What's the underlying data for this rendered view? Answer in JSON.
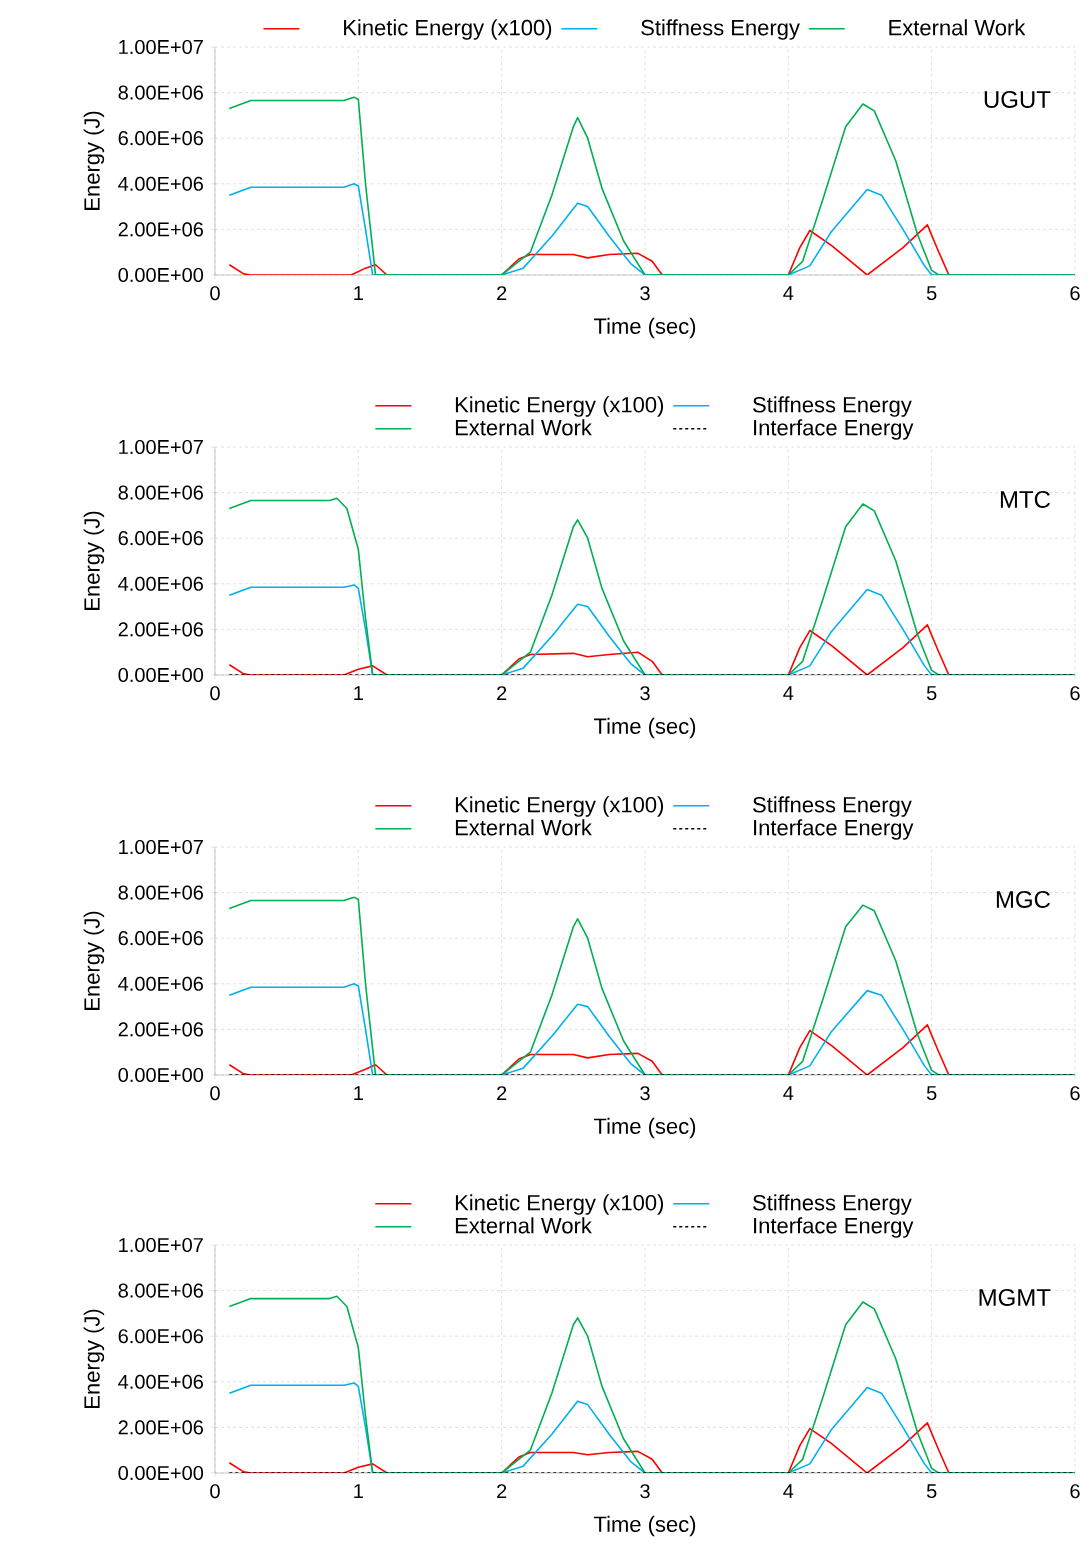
{
  "chart_data": [
    {
      "type": "line",
      "annotations": [
        "UGUT"
      ],
      "xlabel": "Time (sec)",
      "ylabel": "Energy (J)",
      "xlim": [
        0,
        6
      ],
      "xticks": [
        0,
        1,
        2,
        3,
        4,
        5,
        6
      ],
      "ylim": [
        0,
        10000000
      ],
      "yticks": [
        {
          "value": 0,
          "label": "0.00E+00"
        },
        {
          "value": 2000000,
          "label": "2.00E+06"
        },
        {
          "value": 4000000,
          "label": "4.00E+06"
        },
        {
          "value": 6000000,
          "label": "6.00E+06"
        },
        {
          "value": 8000000,
          "label": "8.00E+06"
        },
        {
          "value": 10000000,
          "label": "1.00E+07"
        }
      ],
      "grid": true,
      "legend": "top",
      "series": [
        {
          "name": "Kinetic Energy (x100)",
          "color": "#ff0000",
          "x": [
            0.1,
            0.2,
            0.25,
            0.95,
            1.05,
            1.12,
            1.2,
            2.0,
            2.12,
            2.2,
            2.5,
            2.6,
            2.75,
            2.95,
            3.05,
            3.12,
            4.0,
            4.08,
            4.15,
            4.3,
            4.55,
            4.8,
            4.97,
            5.05,
            5.12,
            6.0
          ],
          "values": [
            450000,
            50000,
            0,
            0,
            300000,
            450000,
            0,
            0,
            700000,
            900000,
            900000,
            750000,
            900000,
            950000,
            600000,
            0,
            0,
            1200000,
            1950000,
            1300000,
            0,
            1200000,
            2200000,
            1000000,
            0,
            0
          ]
        },
        {
          "name": "Stiffness Energy",
          "color": "#00b0f0",
          "x": [
            0.1,
            0.25,
            0.3,
            0.9,
            0.97,
            1.0,
            1.05,
            1.1,
            2.0,
            2.15,
            2.35,
            2.53,
            2.6,
            2.75,
            2.9,
            3.0,
            4.0,
            4.15,
            4.3,
            4.55,
            4.65,
            4.8,
            4.95,
            5.0,
            6.0
          ],
          "values": [
            3500000,
            3850000,
            3850000,
            3850000,
            4000000,
            3900000,
            2000000,
            0,
            0,
            300000,
            1700000,
            3150000,
            3000000,
            1700000,
            500000,
            0,
            0,
            400000,
            1900000,
            3750000,
            3500000,
            2000000,
            400000,
            0,
            0
          ]
        },
        {
          "name": "External Work",
          "color": "#00b050",
          "x": [
            0.1,
            0.25,
            0.3,
            0.9,
            0.97,
            1.0,
            1.05,
            1.12,
            2.0,
            2.2,
            2.35,
            2.5,
            2.53,
            2.6,
            2.7,
            2.85,
            3.0,
            4.0,
            4.1,
            4.25,
            4.4,
            4.52,
            4.6,
            4.75,
            4.9,
            5.0,
            5.05,
            6.0
          ],
          "values": [
            7300000,
            7650000,
            7650000,
            7650000,
            7800000,
            7700000,
            4000000,
            0,
            0,
            1000000,
            3500000,
            6500000,
            6900000,
            6000000,
            3800000,
            1500000,
            0,
            0,
            600000,
            3500000,
            6500000,
            7500000,
            7200000,
            5000000,
            1800000,
            200000,
            0,
            0
          ]
        }
      ]
    },
    {
      "type": "line",
      "annotations": [
        "MTC"
      ],
      "xlabel": "Time (sec)",
      "ylabel": "Energy (J)",
      "xlim": [
        0,
        6
      ],
      "xticks": [
        0,
        1,
        2,
        3,
        4,
        5,
        6
      ],
      "ylim": [
        0,
        10000000
      ],
      "yticks": [
        {
          "value": 0,
          "label": "0.00E+00"
        },
        {
          "value": 2000000,
          "label": "2.00E+06"
        },
        {
          "value": 4000000,
          "label": "4.00E+06"
        },
        {
          "value": 6000000,
          "label": "6.00E+06"
        },
        {
          "value": 8000000,
          "label": "8.00E+06"
        },
        {
          "value": 10000000,
          "label": "1.00E+07"
        }
      ],
      "grid": true,
      "legend": "top",
      "series": [
        {
          "name": "Kinetic Energy (x100)",
          "color": "#ff0000",
          "x": [
            0.1,
            0.2,
            0.25,
            0.9,
            1.0,
            1.1,
            1.2,
            2.0,
            2.12,
            2.2,
            2.5,
            2.6,
            2.75,
            2.95,
            3.05,
            3.12,
            4.0,
            4.08,
            4.15,
            4.3,
            4.55,
            4.8,
            4.97,
            5.05,
            5.12,
            6.0
          ],
          "values": [
            450000,
            50000,
            0,
            0,
            250000,
            400000,
            0,
            0,
            700000,
            900000,
            950000,
            800000,
            900000,
            1000000,
            600000,
            0,
            0,
            1200000,
            1950000,
            1300000,
            0,
            1200000,
            2200000,
            1000000,
            0,
            0
          ]
        },
        {
          "name": "Stiffness Energy",
          "color": "#00b0f0",
          "x": [
            0.1,
            0.25,
            0.3,
            0.9,
            0.97,
            1.0,
            1.05,
            1.1,
            2.0,
            2.15,
            2.35,
            2.53,
            2.6,
            2.75,
            2.9,
            3.0,
            4.0,
            4.15,
            4.3,
            4.55,
            4.65,
            4.8,
            4.95,
            5.0,
            6.0
          ],
          "values": [
            3500000,
            3850000,
            3850000,
            3850000,
            3950000,
            3800000,
            2000000,
            0,
            0,
            300000,
            1700000,
            3100000,
            3000000,
            1700000,
            500000,
            0,
            0,
            400000,
            1900000,
            3750000,
            3500000,
            2000000,
            400000,
            0,
            0
          ]
        },
        {
          "name": "External Work",
          "color": "#00b050",
          "x": [
            0.1,
            0.25,
            0.3,
            0.8,
            0.85,
            0.92,
            1.0,
            1.05,
            1.1,
            2.0,
            2.2,
            2.35,
            2.5,
            2.53,
            2.6,
            2.7,
            2.85,
            3.0,
            4.0,
            4.1,
            4.25,
            4.4,
            4.52,
            4.6,
            4.75,
            4.9,
            5.0,
            5.05,
            6.0
          ],
          "values": [
            7300000,
            7650000,
            7650000,
            7650000,
            7750000,
            7300000,
            5500000,
            2500000,
            0,
            0,
            1000000,
            3500000,
            6500000,
            6800000,
            6000000,
            3800000,
            1500000,
            0,
            0,
            600000,
            3500000,
            6500000,
            7500000,
            7200000,
            5000000,
            1800000,
            200000,
            0,
            0
          ]
        },
        {
          "name": "Interface Energy",
          "color": "#000000",
          "line_style": "dashed",
          "x": [
            0.1,
            6.0
          ],
          "values": [
            0,
            0
          ]
        }
      ]
    },
    {
      "type": "line",
      "annotations": [
        "MGC"
      ],
      "xlabel": "Time (sec)",
      "ylabel": "Energy (J)",
      "xlim": [
        0,
        6
      ],
      "xticks": [
        0,
        1,
        2,
        3,
        4,
        5,
        6
      ],
      "ylim": [
        0,
        10000000
      ],
      "yticks": [
        {
          "value": 0,
          "label": "0.00E+00"
        },
        {
          "value": 2000000,
          "label": "2.00E+06"
        },
        {
          "value": 4000000,
          "label": "4.00E+06"
        },
        {
          "value": 6000000,
          "label": "6.00E+06"
        },
        {
          "value": 8000000,
          "label": "8.00E+06"
        },
        {
          "value": 10000000,
          "label": "1.00E+07"
        }
      ],
      "grid": true,
      "legend": "top",
      "series": [
        {
          "name": "Kinetic Energy (x100)",
          "color": "#ff0000",
          "x": [
            0.1,
            0.2,
            0.25,
            0.95,
            1.05,
            1.12,
            1.2,
            2.0,
            2.12,
            2.2,
            2.5,
            2.6,
            2.75,
            2.95,
            3.05,
            3.12,
            4.0,
            4.08,
            4.15,
            4.3,
            4.55,
            4.8,
            4.97,
            5.05,
            5.12,
            6.0
          ],
          "values": [
            450000,
            50000,
            0,
            0,
            250000,
            450000,
            0,
            0,
            700000,
            900000,
            900000,
            750000,
            900000,
            950000,
            600000,
            0,
            0,
            1200000,
            1950000,
            1300000,
            0,
            1200000,
            2200000,
            1000000,
            0,
            0
          ]
        },
        {
          "name": "Stiffness Energy",
          "color": "#00b0f0",
          "x": [
            0.1,
            0.25,
            0.3,
            0.9,
            0.97,
            1.0,
            1.05,
            1.1,
            2.0,
            2.15,
            2.35,
            2.53,
            2.6,
            2.75,
            2.9,
            3.0,
            4.0,
            4.15,
            4.3,
            4.55,
            4.65,
            4.8,
            4.95,
            5.0,
            6.0
          ],
          "values": [
            3500000,
            3850000,
            3850000,
            3850000,
            4000000,
            3900000,
            2000000,
            0,
            0,
            300000,
            1700000,
            3100000,
            3000000,
            1700000,
            500000,
            0,
            0,
            400000,
            1900000,
            3700000,
            3500000,
            2000000,
            400000,
            0,
            0
          ]
        },
        {
          "name": "External Work",
          "color": "#00b050",
          "x": [
            0.1,
            0.25,
            0.3,
            0.9,
            0.97,
            1.0,
            1.05,
            1.12,
            2.0,
            2.2,
            2.35,
            2.5,
            2.53,
            2.6,
            2.7,
            2.85,
            3.0,
            4.0,
            4.1,
            4.25,
            4.4,
            4.52,
            4.6,
            4.75,
            4.9,
            5.0,
            5.05,
            6.0
          ],
          "values": [
            7300000,
            7650000,
            7650000,
            7650000,
            7800000,
            7700000,
            4000000,
            0,
            0,
            1000000,
            3500000,
            6500000,
            6850000,
            6000000,
            3800000,
            1500000,
            0,
            0,
            600000,
            3500000,
            6500000,
            7450000,
            7200000,
            5000000,
            1800000,
            200000,
            0,
            0
          ]
        },
        {
          "name": "Interface Energy",
          "color": "#000000",
          "line_style": "dashed",
          "x": [
            0.1,
            6.0
          ],
          "values": [
            0,
            0
          ]
        }
      ]
    },
    {
      "type": "line",
      "annotations": [
        "MGMT"
      ],
      "xlabel": "Time (sec)",
      "ylabel": "Energy (J)",
      "xlim": [
        0,
        6
      ],
      "xticks": [
        0,
        1,
        2,
        3,
        4,
        5,
        6
      ],
      "ylim": [
        0,
        10000000
      ],
      "yticks": [
        {
          "value": 0,
          "label": "0.00E+00"
        },
        {
          "value": 2000000,
          "label": "2.00E+06"
        },
        {
          "value": 4000000,
          "label": "4.00E+06"
        },
        {
          "value": 6000000,
          "label": "6.00E+06"
        },
        {
          "value": 8000000,
          "label": "8.00E+06"
        },
        {
          "value": 10000000,
          "label": "1.00E+07"
        }
      ],
      "grid": true,
      "legend": "top",
      "series": [
        {
          "name": "Kinetic Energy (x100)",
          "color": "#ff0000",
          "x": [
            0.1,
            0.2,
            0.25,
            0.9,
            1.0,
            1.1,
            1.2,
            2.0,
            2.12,
            2.2,
            2.5,
            2.6,
            2.75,
            2.95,
            3.05,
            3.12,
            4.0,
            4.08,
            4.15,
            4.3,
            4.55,
            4.8,
            4.97,
            5.05,
            5.12,
            6.0
          ],
          "values": [
            450000,
            50000,
            0,
            0,
            250000,
            400000,
            0,
            0,
            700000,
            900000,
            900000,
            800000,
            900000,
            950000,
            600000,
            0,
            0,
            1200000,
            1950000,
            1300000,
            0,
            1200000,
            2200000,
            1000000,
            0,
            0
          ]
        },
        {
          "name": "Stiffness Energy",
          "color": "#00b0f0",
          "x": [
            0.1,
            0.25,
            0.3,
            0.9,
            0.97,
            1.0,
            1.05,
            1.1,
            2.0,
            2.15,
            2.35,
            2.53,
            2.6,
            2.75,
            2.9,
            3.0,
            4.0,
            4.15,
            4.3,
            4.55,
            4.65,
            4.8,
            4.95,
            5.0,
            6.0
          ],
          "values": [
            3500000,
            3850000,
            3850000,
            3850000,
            3950000,
            3800000,
            2000000,
            0,
            0,
            300000,
            1700000,
            3150000,
            3000000,
            1700000,
            500000,
            0,
            0,
            400000,
            1900000,
            3750000,
            3500000,
            2000000,
            400000,
            0,
            0
          ]
        },
        {
          "name": "External Work",
          "color": "#00b050",
          "x": [
            0.1,
            0.25,
            0.3,
            0.8,
            0.85,
            0.92,
            1.0,
            1.05,
            1.1,
            2.0,
            2.2,
            2.35,
            2.5,
            2.53,
            2.6,
            2.7,
            2.85,
            3.0,
            4.0,
            4.1,
            4.25,
            4.4,
            4.52,
            4.6,
            4.75,
            4.9,
            5.0,
            5.05,
            6.0
          ],
          "values": [
            7300000,
            7650000,
            7650000,
            7650000,
            7750000,
            7300000,
            5500000,
            2500000,
            0,
            0,
            1000000,
            3500000,
            6500000,
            6800000,
            6000000,
            3800000,
            1500000,
            0,
            0,
            600000,
            3500000,
            6500000,
            7500000,
            7200000,
            5000000,
            1800000,
            200000,
            0,
            0
          ]
        },
        {
          "name": "Interface Energy",
          "color": "#000000",
          "line_style": "dashed",
          "x": [
            0.1,
            6.0
          ],
          "values": [
            0,
            0
          ]
        }
      ]
    }
  ]
}
